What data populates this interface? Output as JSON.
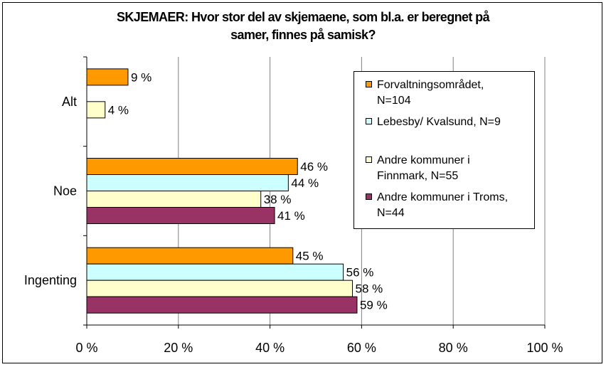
{
  "chart_data": {
    "type": "bar",
    "orientation": "horizontal",
    "title_lines": [
      "SKJEMAER: Hvor stor del av skjemaene, som bl.a. er beregnet på",
      "samer, finnes på samisk?"
    ],
    "categories": [
      "Alt",
      "Noe",
      "Ingenting"
    ],
    "series": [
      {
        "name": "Forvaltningsområdet, N=104",
        "legend_lines": [
          "Forvaltningsområdet,",
          "N=104"
        ],
        "color": "#FF9900",
        "values": [
          9,
          46,
          45
        ]
      },
      {
        "name": "Lebesby/ Kvalsund, N=9",
        "legend_lines": [
          "Lebesby/ Kvalsund, N=9"
        ],
        "color": "#CCFFFF",
        "values": [
          null,
          44,
          56
        ]
      },
      {
        "name": "Andre kommuner i Finnmark, N=55",
        "legend_lines": [
          "Andre kommuner i",
          "Finnmark, N=55"
        ],
        "color": "#FFFFCC",
        "values": [
          4,
          38,
          58
        ]
      },
      {
        "name": "Andre kommuner i Troms, N=44",
        "legend_lines": [
          "Andre kommuner i Troms,",
          "N=44"
        ],
        "color": "#993366",
        "values": [
          null,
          41,
          59
        ]
      }
    ],
    "value_suffix": " %",
    "x_ticks": [
      "0 %",
      "20 %",
      "40 %",
      "60 %",
      "80 %",
      "100 %"
    ],
    "xlim": [
      0,
      100
    ],
    "grid": true,
    "legend_position": "right"
  }
}
